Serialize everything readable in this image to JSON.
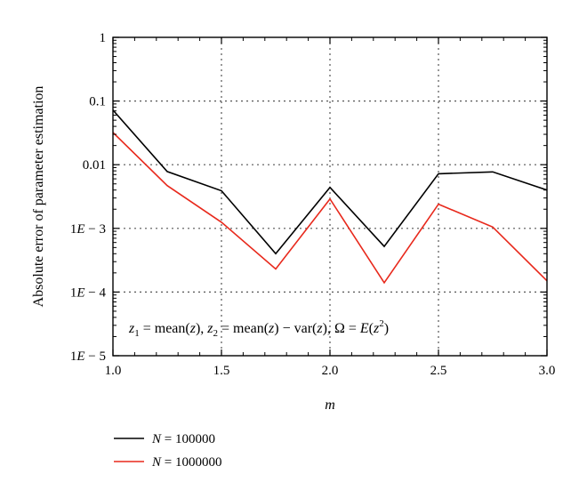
{
  "chart_data": {
    "type": "line",
    "title": "",
    "xlabel": "m",
    "ylabel": "Absolute error of parameter estimation",
    "yscale": "log",
    "xlim": [
      1.0,
      3.0
    ],
    "ylim": [
      1e-05,
      1
    ],
    "x_ticks": [
      1.0,
      1.5,
      2.0,
      2.5,
      3.0
    ],
    "x_tick_labels": [
      "1.0",
      "1.5",
      "2.0",
      "2.5",
      "3.0"
    ],
    "y_ticks": [
      1e-05,
      0.0001,
      0.001,
      0.01,
      0.1,
      1
    ],
    "y_tick_labels": [
      "1E − 5",
      "1E − 4",
      "1E − 3",
      "0.01",
      "0.1",
      "1"
    ],
    "grid": true,
    "legend_position": "bottom-left, below plot",
    "annotation": "z1 = mean(z), z2 = mean(z) − var(z), Ω = E(z²)",
    "x": [
      1.0,
      1.25,
      1.5,
      1.75,
      2.0,
      2.25,
      2.5,
      2.75,
      3.0
    ],
    "series": [
      {
        "name": "N = 100000",
        "color": "#000000",
        "values": [
          0.072,
          0.0078,
          0.0039,
          0.0004,
          0.0044,
          0.00052,
          0.0072,
          0.0077,
          0.004
        ]
      },
      {
        "name": "N = 1000000",
        "color": "#e8291c",
        "values": [
          0.032,
          0.0047,
          0.00125,
          0.00023,
          0.0029,
          0.00014,
          0.0024,
          0.00105,
          0.00015
        ]
      }
    ]
  }
}
